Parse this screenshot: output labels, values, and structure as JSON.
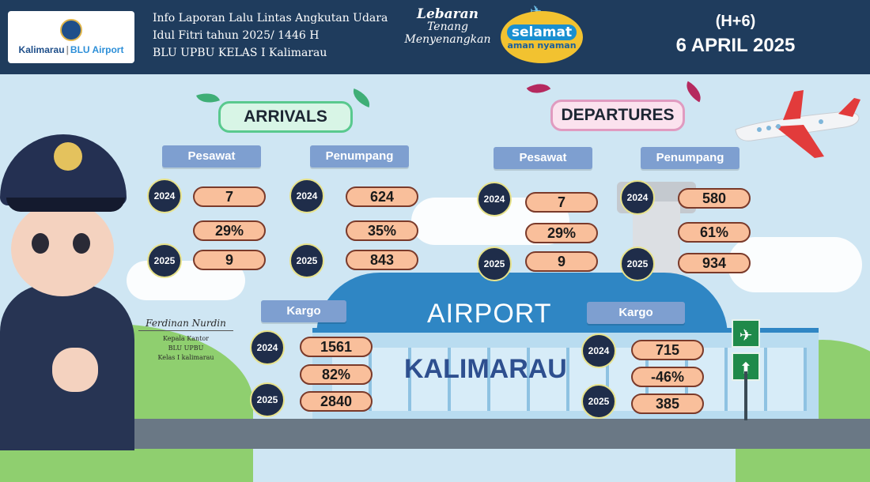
{
  "header": {
    "logo": {
      "brand": "Kalimarau",
      "sub": "BLU Airport"
    },
    "info_lines": [
      "Info Laporan Lalu Lintas Angkutan Udara",
      "Idul Fitri tahun 2025/ 1446 H",
      "BLU UPBU KELAS I Kalimarau"
    ],
    "badge_lebaran": [
      "Lebaran",
      "Tenang",
      "Menyenangkan"
    ],
    "badge_selamat": [
      "selamat",
      "aman nyaman"
    ],
    "day_label": "(H+6)",
    "date": "6 APRIL 2025"
  },
  "arrivals": {
    "title": "ARRIVALS",
    "pesawat": {
      "label": "Pesawat",
      "y2024_label": "2024",
      "y2024": "7",
      "change": "29%",
      "y2025_label": "2025",
      "y2025": "9"
    },
    "penumpang": {
      "label": "Penumpang",
      "y2024_label": "2024",
      "y2024": "624",
      "change": "35%",
      "y2025_label": "2025",
      "y2025": "843"
    },
    "kargo": {
      "label": "Kargo",
      "y2024_label": "2024",
      "y2024": "1561",
      "change": "82%",
      "y2025_label": "2025",
      "y2025": "2840"
    }
  },
  "departures": {
    "title": "DEPARTURES",
    "pesawat": {
      "label": "Pesawat",
      "y2024_label": "2024",
      "y2024": "7",
      "change": "29%",
      "y2025_label": "2025",
      "y2025": "9"
    },
    "penumpang": {
      "label": "Penumpang",
      "y2024_label": "2024",
      "y2024": "580",
      "change": "61%",
      "y2025_label": "2025",
      "y2025": "934"
    },
    "kargo": {
      "label": "Kargo",
      "y2024_label": "2024",
      "y2024": "715",
      "change": "-46%",
      "y2025_label": "2025",
      "y2025": "385"
    }
  },
  "scene": {
    "airport_sign": "AIRPORT",
    "terminal_name": "KALIMARAU"
  },
  "signature": {
    "name": "Ferdinan Nurdin",
    "title_lines": [
      "Kepala Kantor",
      "BLU UPBU",
      "Kelas I kalimarau"
    ]
  },
  "colors": {
    "header_bg": "#1f3c5d",
    "value_pill": "#f9bf9b",
    "label_pill": "#7e9fd0",
    "year_circle": "#1f2d4a"
  }
}
